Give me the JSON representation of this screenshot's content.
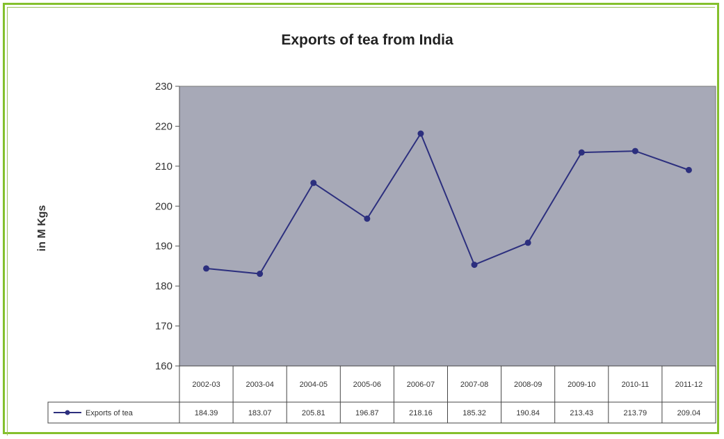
{
  "chart_data": {
    "type": "line",
    "title": "Exports of tea from India",
    "ylabel": "in M Kgs",
    "xlabel": "",
    "ylim": [
      160,
      230
    ],
    "yticks": [
      160,
      170,
      180,
      190,
      200,
      210,
      220,
      230
    ],
    "categories": [
      "2002-03",
      "2003-04",
      "2004-05",
      "2005-06",
      "2006-07",
      "2007-08",
      "2008-09",
      "2009-10",
      "2010-11",
      "2011-12"
    ],
    "series": [
      {
        "name": "Exports of tea",
        "values": [
          184.39,
          183.07,
          205.81,
          196.87,
          218.16,
          185.32,
          190.84,
          213.43,
          213.79,
          209.04
        ],
        "labels": [
          "184.39",
          "183.07",
          "205.81",
          "196.87",
          "218.16",
          "185.32",
          "190.84",
          "213.43",
          "213.79",
          "209.04"
        ]
      }
    ],
    "grid": false,
    "legend": "data-table",
    "colors": {
      "plot_background": "#a7a9b7",
      "line": "#2c2f7e",
      "frame": "#84c02c"
    }
  }
}
